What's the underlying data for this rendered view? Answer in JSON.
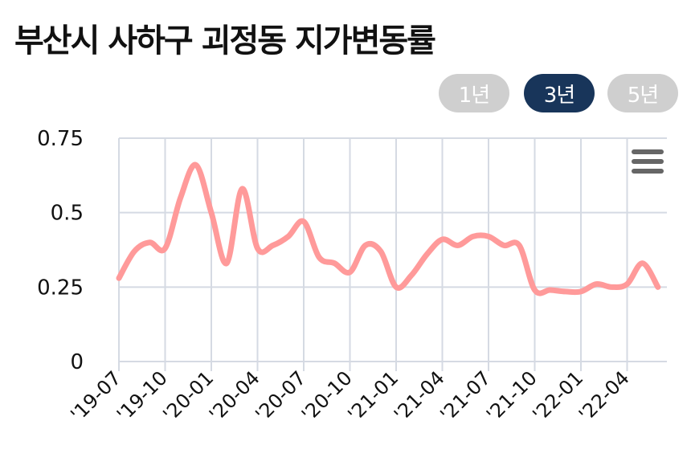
{
  "title": "부산시 사하구 괴정동 지가변동률",
  "range_buttons": [
    {
      "label": "1년",
      "active": false
    },
    {
      "label": "3년",
      "active": true
    },
    {
      "label": "5년",
      "active": false
    }
  ],
  "menu_icon": "hamburger-menu-icon",
  "colors": {
    "line": "#ff9a9a",
    "grid": "#d5dae3",
    "active_button": "#18355a",
    "inactive_button": "#cfcfcf"
  },
  "chart_data": {
    "type": "line",
    "title": "",
    "xlabel": "",
    "ylabel": "",
    "ylim": [
      0,
      0.75
    ],
    "yticks": [
      {
        "value": 0,
        "label": "0"
      },
      {
        "value": 0.25,
        "label": "0.25"
      },
      {
        "value": 0.5,
        "label": "0.5"
      },
      {
        "value": 0.75,
        "label": "0.75"
      }
    ],
    "xtick_labels": [
      "'19-07",
      "'19-10",
      "'20-01",
      "'20-04",
      "'20-07",
      "'20-10",
      "'21-01",
      "'21-04",
      "'21-07",
      "'21-10",
      "'22-01",
      "'22-04"
    ],
    "grid": true,
    "legend": "none",
    "series": [
      {
        "x": [
          "2019-07",
          "2019-08",
          "2019-09",
          "2019-10",
          "2019-11",
          "2019-12",
          "2020-01",
          "2020-02",
          "2020-03",
          "2020-04",
          "2020-05",
          "2020-06",
          "2020-07",
          "2020-08",
          "2020-09",
          "2020-10",
          "2020-11",
          "2020-12",
          "2021-01",
          "2021-02",
          "2021-03",
          "2021-04",
          "2021-05",
          "2021-06",
          "2021-07",
          "2021-08",
          "2021-09",
          "2021-10",
          "2021-11",
          "2021-12",
          "2022-01",
          "2022-02",
          "2022-03",
          "2022-04",
          "2022-05",
          "2022-06"
        ],
        "values": [
          0.28,
          0.37,
          0.4,
          0.38,
          0.55,
          0.66,
          0.5,
          0.33,
          0.58,
          0.38,
          0.39,
          0.42,
          0.47,
          0.35,
          0.33,
          0.3,
          0.39,
          0.37,
          0.25,
          0.29,
          0.36,
          0.41,
          0.39,
          0.42,
          0.42,
          0.39,
          0.39,
          0.24,
          0.24,
          0.235,
          0.235,
          0.26,
          0.25,
          0.26,
          0.33,
          0.25
        ]
      }
    ]
  }
}
